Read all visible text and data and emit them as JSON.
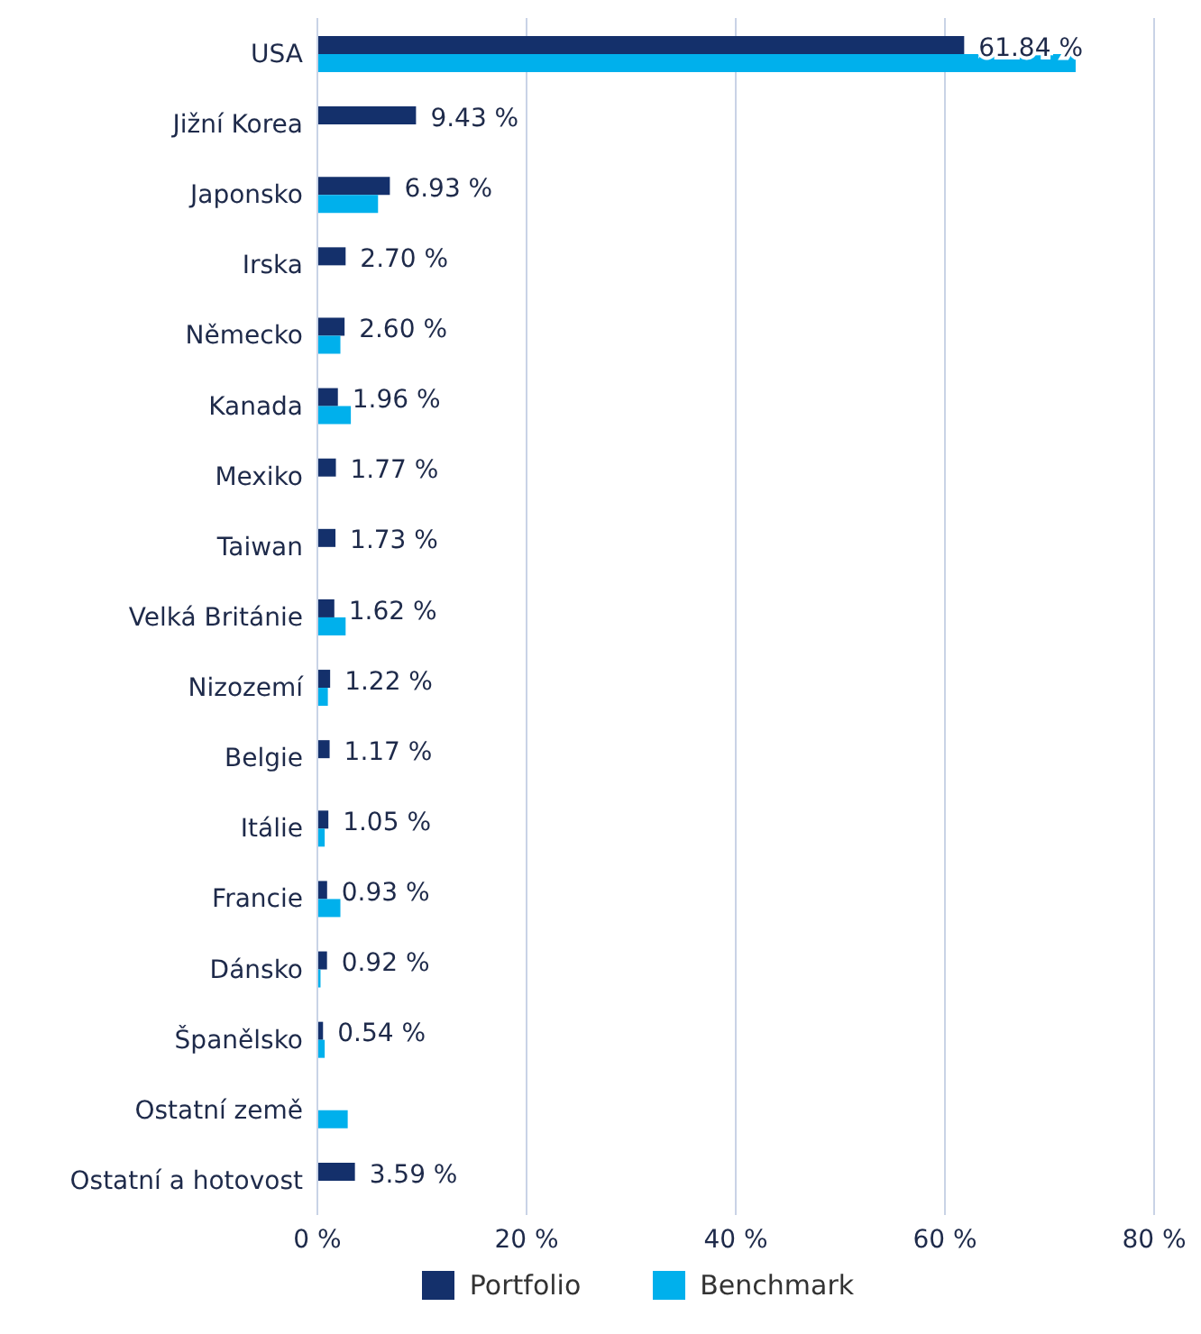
{
  "chart_data": {
    "type": "bar",
    "orientation": "horizontal",
    "categories": [
      "USA",
      "Jižní Korea",
      "Japonsko",
      "Irska",
      "Německo",
      "Kanada",
      "Mexiko",
      "Taiwan",
      "Velká Británie",
      "Nizozemí",
      "Belgie",
      "Itálie",
      "Francie",
      "Dánsko",
      "Španělsko",
      "Ostatní země",
      "Ostatní a hotovost"
    ],
    "series": [
      {
        "name": "Portfolio",
        "color": "#14306b",
        "values": [
          61.84,
          9.43,
          6.93,
          2.7,
          2.6,
          1.96,
          1.77,
          1.73,
          1.62,
          1.22,
          1.17,
          1.05,
          0.93,
          0.92,
          0.54,
          null,
          3.59
        ],
        "value_labels": [
          "61.84 %",
          "9.43 %",
          "6.93 %",
          "2.70 %",
          "2.60 %",
          "1.96 %",
          "1.77 %",
          "1.73 %",
          "1.62 %",
          "1.22 %",
          "1.17 %",
          "1.05 %",
          "0.93 %",
          "0.92 %",
          "0.54 %",
          null,
          "3.59 %"
        ]
      },
      {
        "name": "Benchmark",
        "color": "#00b0ec",
        "values": [
          72.5,
          null,
          5.8,
          null,
          2.2,
          3.2,
          null,
          null,
          2.7,
          1.0,
          null,
          0.7,
          2.2,
          0.3,
          0.7,
          2.9,
          null
        ]
      }
    ],
    "xlim": [
      0,
      80
    ],
    "xticks": [
      {
        "value": 0,
        "label": "0 %"
      },
      {
        "value": 20,
        "label": "20 %"
      },
      {
        "value": 40,
        "label": "40 %"
      },
      {
        "value": 60,
        "label": "60 %"
      },
      {
        "value": 80,
        "label": "80 %"
      }
    ],
    "grid": "x",
    "legend": "bottom"
  }
}
